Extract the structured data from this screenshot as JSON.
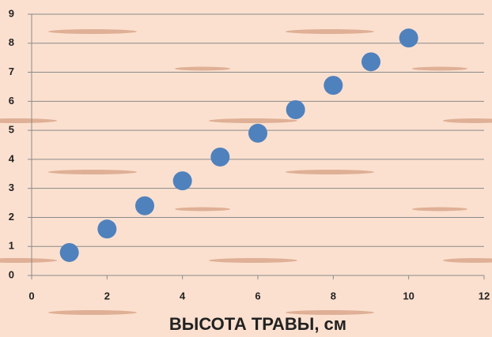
{
  "chart_data": {
    "type": "scatter",
    "x_label": "ВЫСОТА ТРАВЫ, см",
    "series": [
      {
        "color": "#4f81bd",
        "x": [
          1,
          2,
          3,
          4,
          5,
          6,
          7,
          8,
          9,
          10
        ],
        "values": [
          0.79,
          1.6,
          2.4,
          3.26,
          4.08,
          4.9,
          5.71,
          6.55,
          7.36,
          8.18
        ]
      }
    ],
    "xlim": [
      0,
      12
    ],
    "xticks": [
      0,
      2,
      4,
      6,
      8,
      10,
      12
    ],
    "ylim": [
      0,
      9
    ],
    "yticks": [
      0,
      1,
      2,
      3,
      4,
      5,
      6,
      7,
      8,
      9
    ],
    "grid": true
  }
}
